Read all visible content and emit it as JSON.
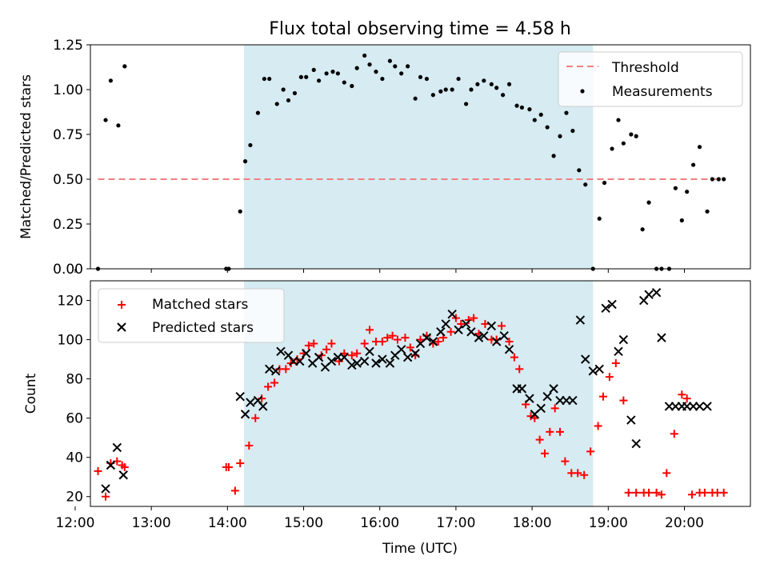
{
  "chart_data": [
    {
      "type": "scatter",
      "title": "Flux total observing time = 4.58 h",
      "xlabel": "",
      "ylabel": "Matched/Predicted stars",
      "xlim": [
        "12:12",
        "20:52"
      ],
      "ylim": [
        0,
        1.25
      ],
      "yticks": [
        0,
        0.25,
        0.5,
        0.75,
        1.0,
        1.25
      ],
      "ytick_labels": [
        "0.00",
        "0.25",
        "0.50",
        "0.75",
        "1.00",
        "1.25"
      ],
      "shaded_interval": [
        "14:13",
        "18:48"
      ],
      "legend_position": "top-right",
      "threshold": {
        "name": "Threshold",
        "value": 0.5,
        "x_range": [
          "12:18",
          "20:30"
        ],
        "color": "#f08080"
      },
      "series": [
        {
          "name": "Measurements",
          "color": "#000000",
          "x": [
            "12:18",
            "12:24",
            "12:28",
            "12:34",
            "12:39",
            "13:59",
            "14:01",
            "14:10",
            "14:14",
            "14:18",
            "14:24",
            "14:29",
            "14:33",
            "14:39",
            "14:44",
            "14:48",
            "14:53",
            "14:58",
            "15:02",
            "15:08",
            "15:12",
            "15:18",
            "15:23",
            "15:27",
            "15:32",
            "15:38",
            "15:42",
            "15:48",
            "15:52",
            "15:57",
            "16:02",
            "16:08",
            "16:12",
            "16:17",
            "16:22",
            "16:28",
            "16:32",
            "16:37",
            "16:42",
            "16:48",
            "16:52",
            "16:57",
            "17:02",
            "17:08",
            "17:12",
            "17:17",
            "17:22",
            "17:28",
            "17:32",
            "17:37",
            "17:42",
            "17:48",
            "17:52",
            "17:58",
            "18:02",
            "18:07",
            "18:12",
            "18:17",
            "18:22",
            "18:27",
            "18:32",
            "18:37",
            "18:42",
            "18:48",
            "18:53",
            "18:57",
            "19:03",
            "19:08",
            "19:12",
            "19:18",
            "19:22",
            "19:27",
            "19:32",
            "19:38",
            "19:42",
            "19:48",
            "19:53",
            "19:58",
            "20:02",
            "20:07",
            "20:12",
            "20:18",
            "20:22",
            "20:27",
            "20:31"
          ],
          "y": [
            0.0,
            0.83,
            1.05,
            0.8,
            1.13,
            0.0,
            0.0,
            0.32,
            0.6,
            0.69,
            0.87,
            1.06,
            1.06,
            0.92,
            1.0,
            0.94,
            0.98,
            1.07,
            1.07,
            1.11,
            1.05,
            1.09,
            1.1,
            1.09,
            1.04,
            1.02,
            1.12,
            1.19,
            1.14,
            1.1,
            1.06,
            1.16,
            1.13,
            1.09,
            1.13,
            0.95,
            1.07,
            1.06,
            0.97,
            0.99,
            1.0,
            1.0,
            1.06,
            0.92,
            1.0,
            1.03,
            1.05,
            1.03,
            1.01,
            0.97,
            1.03,
            0.91,
            0.9,
            0.89,
            0.83,
            0.86,
            0.79,
            0.63,
            0.74,
            0.87,
            0.77,
            0.55,
            0.47,
            0.0,
            0.28,
            0.48,
            0.67,
            0.83,
            0.7,
            0.75,
            0.74,
            0.22,
            0.37,
            0.0,
            0.0,
            0.0,
            0.45,
            0.27,
            0.43,
            0.58,
            0.68,
            0.32,
            0.5,
            0.5,
            0.5
          ]
        }
      ]
    },
    {
      "type": "scatter",
      "title": "",
      "xlabel": "Time (UTC)",
      "ylabel": "Count",
      "xlim": [
        "12:12",
        "20:52"
      ],
      "ylim": [
        15,
        130
      ],
      "yticks": [
        20,
        40,
        60,
        80,
        100,
        120
      ],
      "xticks": [
        "12:00",
        "13:00",
        "14:00",
        "15:00",
        "16:00",
        "17:00",
        "18:00",
        "19:00",
        "20:00"
      ],
      "shaded_interval": [
        "14:13",
        "18:48"
      ],
      "legend_position": "top-left",
      "series": [
        {
          "name": "Matched stars",
          "color": "#ff0000",
          "marker": "plus",
          "x": [
            "12:18",
            "12:24",
            "12:28",
            "12:33",
            "12:37",
            "12:39",
            "13:59",
            "14:01",
            "14:06",
            "14:10",
            "14:17",
            "14:22",
            "14:27",
            "14:32",
            "14:37",
            "14:41",
            "14:46",
            "14:50",
            "14:55",
            "15:00",
            "15:04",
            "15:08",
            "15:14",
            "15:18",
            "15:22",
            "15:28",
            "15:32",
            "15:38",
            "15:42",
            "15:48",
            "15:52",
            "15:57",
            "16:02",
            "16:06",
            "16:10",
            "16:14",
            "16:20",
            "16:24",
            "16:28",
            "16:32",
            "16:37",
            "16:42",
            "16:46",
            "16:50",
            "16:56",
            "17:00",
            "17:04",
            "17:10",
            "17:14",
            "17:18",
            "17:23",
            "17:28",
            "17:32",
            "17:36",
            "17:42",
            "17:46",
            "17:50",
            "17:55",
            "17:59",
            "18:02",
            "18:06",
            "18:10",
            "18:14",
            "18:18",
            "18:22",
            "18:26",
            "18:31",
            "18:36",
            "18:41",
            "18:46",
            "18:52",
            "18:56",
            "19:01",
            "19:06",
            "19:12",
            "19:16",
            "19:22",
            "19:28",
            "19:32",
            "19:38",
            "19:42",
            "19:46",
            "19:52",
            "19:58",
            "20:02",
            "20:06",
            "20:12",
            "20:16",
            "20:22",
            "20:26",
            "20:31"
          ],
          "y": [
            33,
            20,
            37,
            38,
            36,
            35,
            35,
            35,
            23,
            37,
            46,
            60,
            70,
            76,
            78,
            85,
            85,
            88,
            90,
            93,
            97,
            98,
            92,
            95,
            98,
            89,
            93,
            92,
            93,
            98,
            105,
            99,
            99,
            101,
            102,
            100,
            101,
            96,
            92,
            100,
            102,
            98,
            99,
            101,
            104,
            111,
            108,
            110,
            111,
            103,
            108,
            100,
            100,
            107,
            99,
            91,
            85,
            67,
            61,
            60,
            49,
            42,
            53,
            65,
            53,
            38,
            32,
            32,
            31,
            43,
            56,
            71,
            81,
            88,
            69,
            22,
            22,
            22,
            22,
            22,
            21,
            32,
            52,
            72,
            70,
            21,
            22,
            22,
            22,
            22,
            22
          ]
        },
        {
          "name": "Predicted stars",
          "color": "#000000",
          "marker": "x",
          "x": [
            "12:24",
            "12:28",
            "12:33",
            "12:38",
            "14:10",
            "14:14",
            "14:18",
            "14:24",
            "14:28",
            "14:33",
            "14:38",
            "14:42",
            "14:48",
            "14:52",
            "14:57",
            "15:02",
            "15:07",
            "15:12",
            "15:17",
            "15:22",
            "15:27",
            "15:32",
            "15:38",
            "15:42",
            "15:48",
            "15:52",
            "15:57",
            "16:02",
            "16:08",
            "16:12",
            "16:17",
            "16:22",
            "16:28",
            "16:32",
            "16:37",
            "16:42",
            "16:48",
            "16:52",
            "16:57",
            "17:02",
            "17:08",
            "17:12",
            "17:18",
            "17:22",
            "17:28",
            "17:32",
            "17:38",
            "17:42",
            "17:48",
            "17:52",
            "17:58",
            "18:02",
            "18:07",
            "18:12",
            "18:17",
            "18:22",
            "18:27",
            "18:32",
            "18:38",
            "18:42",
            "18:48",
            "18:53",
            "18:58",
            "19:03",
            "19:08",
            "19:12",
            "19:18",
            "19:22",
            "19:28",
            "19:32",
            "19:38",
            "19:42",
            "19:48",
            "19:53",
            "19:58",
            "20:02",
            "20:07",
            "20:12",
            "20:18"
          ],
          "y": [
            24,
            36,
            45,
            31,
            71,
            62,
            68,
            69,
            66,
            85,
            84,
            94,
            92,
            89,
            89,
            93,
            88,
            91,
            86,
            89,
            91,
            91,
            87,
            88,
            89,
            94,
            88,
            90,
            88,
            92,
            95,
            91,
            93,
            98,
            101,
            99,
            104,
            108,
            113,
            105,
            108,
            104,
            101,
            102,
            107,
            99,
            102,
            95,
            75,
            75,
            70,
            62,
            65,
            71,
            75,
            69,
            69,
            69,
            110,
            90,
            84,
            85,
            116,
            118,
            94,
            100,
            59,
            47,
            120,
            123,
            124,
            101,
            66,
            66,
            66,
            66,
            66,
            66,
            66
          ]
        }
      ]
    }
  ]
}
